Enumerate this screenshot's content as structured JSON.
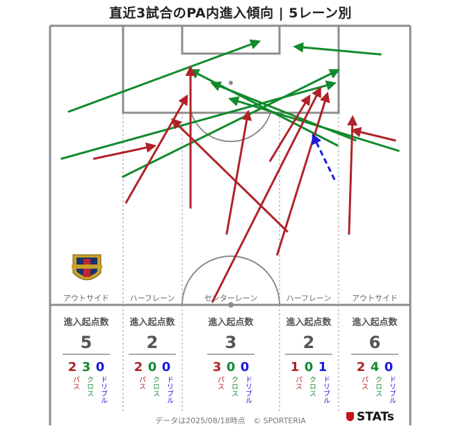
{
  "title": "直近3試合のPA内進入傾向 | 5レーン別",
  "footer": {
    "data_date": "データは2025/08/18時点",
    "copyright": "© SPORTERIA",
    "brand": "STATs"
  },
  "colors": {
    "pass": "#b02227",
    "cross": "#118a2c",
    "dribble": "#1a1adb",
    "line": "#8c8c8c"
  },
  "chart_data": {
    "type": "pitch-arrows",
    "lanes": [
      {
        "name": "アウトサイド",
        "header": "進入起点数",
        "total": "5",
        "stats": [
          {
            "value": "2",
            "label": "パス",
            "kind": "pass"
          },
          {
            "value": "3",
            "label": "クロス",
            "kind": "cross"
          },
          {
            "value": "0",
            "label": "ドリブル",
            "kind": "dribble"
          }
        ]
      },
      {
        "name": "ハーフレーン",
        "header": "進入起点数",
        "total": "2",
        "stats": [
          {
            "value": "2",
            "label": "パス",
            "kind": "pass"
          },
          {
            "value": "0",
            "label": "クロス",
            "kind": "cross"
          },
          {
            "value": "0",
            "label": "ドリブル",
            "kind": "dribble"
          }
        ]
      },
      {
        "name": "センターレーン",
        "header": "進入起点数",
        "total": "3",
        "stats": [
          {
            "value": "3",
            "label": "パス",
            "kind": "pass"
          },
          {
            "value": "0",
            "label": "クロス",
            "kind": "cross"
          },
          {
            "value": "0",
            "label": "ドリブル",
            "kind": "dribble"
          }
        ]
      },
      {
        "name": "ハーフレーン",
        "header": "進入起点数",
        "total": "2",
        "stats": [
          {
            "value": "1",
            "label": "パス",
            "kind": "pass"
          },
          {
            "value": "0",
            "label": "クロス",
            "kind": "cross"
          },
          {
            "value": "1",
            "label": "ドリブル",
            "kind": "dribble"
          }
        ]
      },
      {
        "name": "アウトサイド",
        "header": "進入起点数",
        "total": "6",
        "stats": [
          {
            "value": "2",
            "label": "パス",
            "kind": "pass"
          },
          {
            "value": "4",
            "label": "クロス",
            "kind": "cross"
          },
          {
            "value": "0",
            "label": "ドリブル",
            "kind": "dribble"
          }
        ]
      }
    ],
    "arrows": [
      {
        "kind": "cross",
        "from": [
          5,
          33
        ],
        "to": [
          58,
          6
        ]
      },
      {
        "kind": "cross",
        "from": [
          3,
          51
        ],
        "to": [
          79,
          22
        ]
      },
      {
        "kind": "cross",
        "from": [
          20,
          58
        ],
        "to": [
          80,
          17
        ]
      },
      {
        "kind": "cross",
        "from": [
          80,
          46
        ],
        "to": [
          39,
          17
        ]
      },
      {
        "kind": "cross",
        "from": [
          85,
          44
        ],
        "to": [
          45,
          22
        ]
      },
      {
        "kind": "cross",
        "from": [
          97,
          48
        ],
        "to": [
          50,
          28
        ]
      },
      {
        "kind": "cross",
        "from": [
          92,
          11
        ],
        "to": [
          68,
          8
        ]
      },
      {
        "kind": "pass",
        "from": [
          21,
          68
        ],
        "to": [
          38,
          27
        ]
      },
      {
        "kind": "pass",
        "from": [
          39,
          70
        ],
        "to": [
          39,
          16
        ]
      },
      {
        "kind": "pass",
        "from": [
          49,
          80
        ],
        "to": [
          55,
          33
        ]
      },
      {
        "kind": "pass",
        "from": [
          66,
          79
        ],
        "to": [
          34,
          36
        ]
      },
      {
        "kind": "pass",
        "from": [
          63,
          88
        ],
        "to": [
          77,
          26
        ]
      },
      {
        "kind": "pass",
        "from": [
          45,
          106
        ],
        "to": [
          75,
          24
        ]
      },
      {
        "kind": "pass",
        "from": [
          61,
          52
        ],
        "to": [
          72,
          27
        ]
      },
      {
        "kind": "pass",
        "from": [
          12,
          51
        ],
        "to": [
          29,
          46
        ]
      },
      {
        "kind": "pass",
        "from": [
          83,
          80
        ],
        "to": [
          84,
          35
        ]
      },
      {
        "kind": "pass",
        "from": [
          96,
          44
        ],
        "to": [
          84,
          40
        ]
      },
      {
        "kind": "dribble",
        "from": [
          79,
          59
        ],
        "to": [
          73,
          42
        ]
      }
    ]
  }
}
